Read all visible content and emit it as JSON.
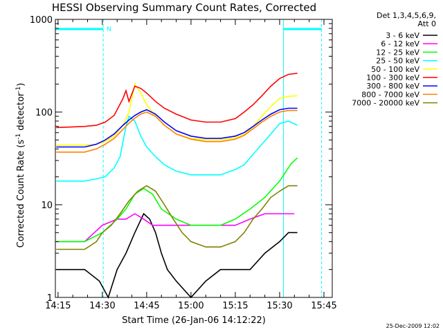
{
  "chart_data": {
    "type": "line",
    "title": "HESSI Observing Summary Count Rates, Corrected",
    "xlabel": "Start Time (26-Jan-06 14:12:22)",
    "ylabel_main": "Corrected Count Rate (s",
    "ylabel_sup1": "-1",
    "ylabel_mid": " detector",
    "ylabel_sup2": "-1",
    "ylabel_end": ")",
    "ylim": [
      1,
      1000
    ],
    "yscale": "log",
    "xlim_minutes": [
      14.1,
      96.8
    ],
    "x_ticks": [
      {
        "t": 15,
        "label": "14:15"
      },
      {
        "t": 30,
        "label": "14:30"
      },
      {
        "t": 45,
        "label": "14:45"
      },
      {
        "t": 60,
        "label": "15:00"
      },
      {
        "t": 75,
        "label": "15:15"
      },
      {
        "t": 90,
        "label": "15:30"
      },
      {
        "t": 105,
        "label": "15:45"
      }
    ],
    "y_ticks": [
      {
        "v": 1,
        "label": "1"
      },
      {
        "v": 10,
        "label": "10"
      },
      {
        "v": 100,
        "label": "100"
      },
      {
        "v": 1000,
        "label": "1000"
      }
    ],
    "legend_header_1": "Det 1,3,4,5,6,9,",
    "legend_header_2": "Att 0",
    "legend_position": "right",
    "footer_date": "25-Dec-2009 12:02",
    "night_marker_label": "N",
    "series": [
      {
        "name": "3 - 6 keV",
        "color": "#000000",
        "points": [
          [
            14.4,
            2
          ],
          [
            24,
            2
          ],
          [
            29,
            1.5
          ],
          [
            32,
            1
          ],
          [
            35,
            2
          ],
          [
            38,
            3
          ],
          [
            41,
            5
          ],
          [
            44,
            8
          ],
          [
            46,
            7
          ],
          [
            48,
            5
          ],
          [
            50,
            3
          ],
          [
            52,
            2
          ],
          [
            55,
            1.5
          ],
          [
            60,
            1
          ],
          [
            65,
            1.5
          ],
          [
            70,
            2
          ],
          [
            75,
            2
          ],
          [
            80,
            2
          ],
          [
            85,
            3
          ],
          [
            90,
            4
          ],
          [
            93,
            5
          ],
          [
            96,
            5
          ]
        ]
      },
      {
        "name": "6 - 12 keV",
        "color": "#ff00ff",
        "points": [
          [
            14.4,
            4
          ],
          [
            24,
            4
          ],
          [
            30,
            6
          ],
          [
            35,
            7
          ],
          [
            38,
            7
          ],
          [
            41,
            8
          ],
          [
            44,
            7
          ],
          [
            47,
            6
          ],
          [
            50,
            6
          ],
          [
            55,
            6
          ],
          [
            60,
            6
          ],
          [
            65,
            6
          ],
          [
            70,
            6
          ],
          [
            75,
            6
          ],
          [
            80,
            7
          ],
          [
            85,
            8
          ],
          [
            90,
            8
          ],
          [
            95,
            8
          ]
        ]
      },
      {
        "name": "12 - 25 keV",
        "color": "#00ff00",
        "points": [
          [
            14.4,
            4
          ],
          [
            24,
            4
          ],
          [
            30,
            5
          ],
          [
            35,
            7
          ],
          [
            38,
            9
          ],
          [
            41,
            13
          ],
          [
            44,
            15
          ],
          [
            47,
            13
          ],
          [
            50,
            9
          ],
          [
            55,
            7
          ],
          [
            60,
            6
          ],
          [
            65,
            6
          ],
          [
            70,
            6
          ],
          [
            75,
            7
          ],
          [
            80,
            9
          ],
          [
            85,
            12
          ],
          [
            90,
            18
          ],
          [
            94,
            28
          ],
          [
            96,
            32
          ]
        ]
      },
      {
        "name": "25 - 50 keV",
        "color": "#00ffff",
        "points": [
          [
            14.4,
            18
          ],
          [
            24,
            18
          ],
          [
            28,
            19
          ],
          [
            31,
            20
          ],
          [
            34,
            25
          ],
          [
            36,
            33
          ],
          [
            38,
            70
          ],
          [
            39,
            90
          ],
          [
            41,
            80
          ],
          [
            43,
            55
          ],
          [
            45,
            42
          ],
          [
            48,
            33
          ],
          [
            51,
            27
          ],
          [
            55,
            23
          ],
          [
            60,
            21
          ],
          [
            65,
            21
          ],
          [
            70,
            21
          ],
          [
            75,
            24
          ],
          [
            78,
            27
          ],
          [
            81,
            35
          ],
          [
            84,
            45
          ],
          [
            87,
            58
          ],
          [
            90,
            75
          ],
          [
            93,
            80
          ],
          [
            96,
            72
          ]
        ]
      },
      {
        "name": "50 - 100 keV",
        "color": "#ffff00",
        "points": [
          [
            14.4,
            44
          ],
          [
            24,
            44
          ],
          [
            28,
            45
          ],
          [
            31,
            48
          ],
          [
            34,
            55
          ],
          [
            37,
            72
          ],
          [
            39,
            100
          ],
          [
            41,
            200
          ],
          [
            43,
            160
          ],
          [
            45,
            120
          ],
          [
            48,
            90
          ],
          [
            51,
            72
          ],
          [
            55,
            58
          ],
          [
            60,
            52
          ],
          [
            65,
            50
          ],
          [
            70,
            50
          ],
          [
            75,
            53
          ],
          [
            78,
            57
          ],
          [
            81,
            70
          ],
          [
            84,
            90
          ],
          [
            87,
            115
          ],
          [
            90,
            140
          ],
          [
            93,
            148
          ],
          [
            96,
            150
          ]
        ]
      },
      {
        "name": "100 - 300 keV",
        "color": "#ff0000",
        "points": [
          [
            14.4,
            68
          ],
          [
            24,
            70
          ],
          [
            28,
            72
          ],
          [
            31,
            78
          ],
          [
            34,
            92
          ],
          [
            37,
            140
          ],
          [
            38,
            170
          ],
          [
            39,
            130
          ],
          [
            41,
            190
          ],
          [
            43,
            180
          ],
          [
            45,
            160
          ],
          [
            48,
            130
          ],
          [
            51,
            110
          ],
          [
            55,
            95
          ],
          [
            60,
            82
          ],
          [
            65,
            78
          ],
          [
            70,
            78
          ],
          [
            75,
            85
          ],
          [
            78,
            100
          ],
          [
            81,
            120
          ],
          [
            84,
            150
          ],
          [
            87,
            190
          ],
          [
            90,
            230
          ],
          [
            93,
            255
          ],
          [
            96,
            262
          ]
        ]
      },
      {
        "name": "300 - 800 keV",
        "color": "#0000ff",
        "points": [
          [
            14.4,
            42
          ],
          [
            24,
            42
          ],
          [
            28,
            45
          ],
          [
            31,
            50
          ],
          [
            34,
            58
          ],
          [
            37,
            72
          ],
          [
            39,
            82
          ],
          [
            41,
            92
          ],
          [
            43,
            100
          ],
          [
            45,
            106
          ],
          [
            48,
            95
          ],
          [
            51,
            78
          ],
          [
            55,
            63
          ],
          [
            60,
            55
          ],
          [
            65,
            52
          ],
          [
            70,
            52
          ],
          [
            75,
            55
          ],
          [
            78,
            60
          ],
          [
            81,
            70
          ],
          [
            84,
            82
          ],
          [
            87,
            95
          ],
          [
            90,
            106
          ],
          [
            93,
            110
          ],
          [
            96,
            110
          ]
        ]
      },
      {
        "name": "800 - 7000 keV",
        "color": "#ff8000",
        "points": [
          [
            14.4,
            37
          ],
          [
            24,
            37
          ],
          [
            28,
            40
          ],
          [
            31,
            45
          ],
          [
            34,
            52
          ],
          [
            37,
            65
          ],
          [
            39,
            76
          ],
          [
            41,
            86
          ],
          [
            43,
            95
          ],
          [
            45,
            100
          ],
          [
            48,
            90
          ],
          [
            51,
            72
          ],
          [
            55,
            58
          ],
          [
            60,
            51
          ],
          [
            65,
            48
          ],
          [
            70,
            48
          ],
          [
            75,
            51
          ],
          [
            78,
            56
          ],
          [
            81,
            66
          ],
          [
            84,
            78
          ],
          [
            87,
            90
          ],
          [
            90,
            100
          ],
          [
            93,
            104
          ],
          [
            96,
            104
          ]
        ]
      },
      {
        "name": "7000 - 20000 keV",
        "color": "#808000",
        "points": [
          [
            14.4,
            3.3
          ],
          [
            24,
            3.3
          ],
          [
            28,
            4
          ],
          [
            30,
            5
          ],
          [
            33,
            6
          ],
          [
            36,
            8
          ],
          [
            39,
            11
          ],
          [
            42,
            14
          ],
          [
            45,
            16
          ],
          [
            48,
            14
          ],
          [
            51,
            10
          ],
          [
            54,
            7
          ],
          [
            57,
            5
          ],
          [
            60,
            4
          ],
          [
            65,
            3.5
          ],
          [
            70,
            3.5
          ],
          [
            75,
            4
          ],
          [
            78,
            5
          ],
          [
            81,
            7
          ],
          [
            84,
            9
          ],
          [
            87,
            12
          ],
          [
            90,
            14
          ],
          [
            93,
            16
          ],
          [
            96,
            16
          ]
        ]
      }
    ]
  }
}
